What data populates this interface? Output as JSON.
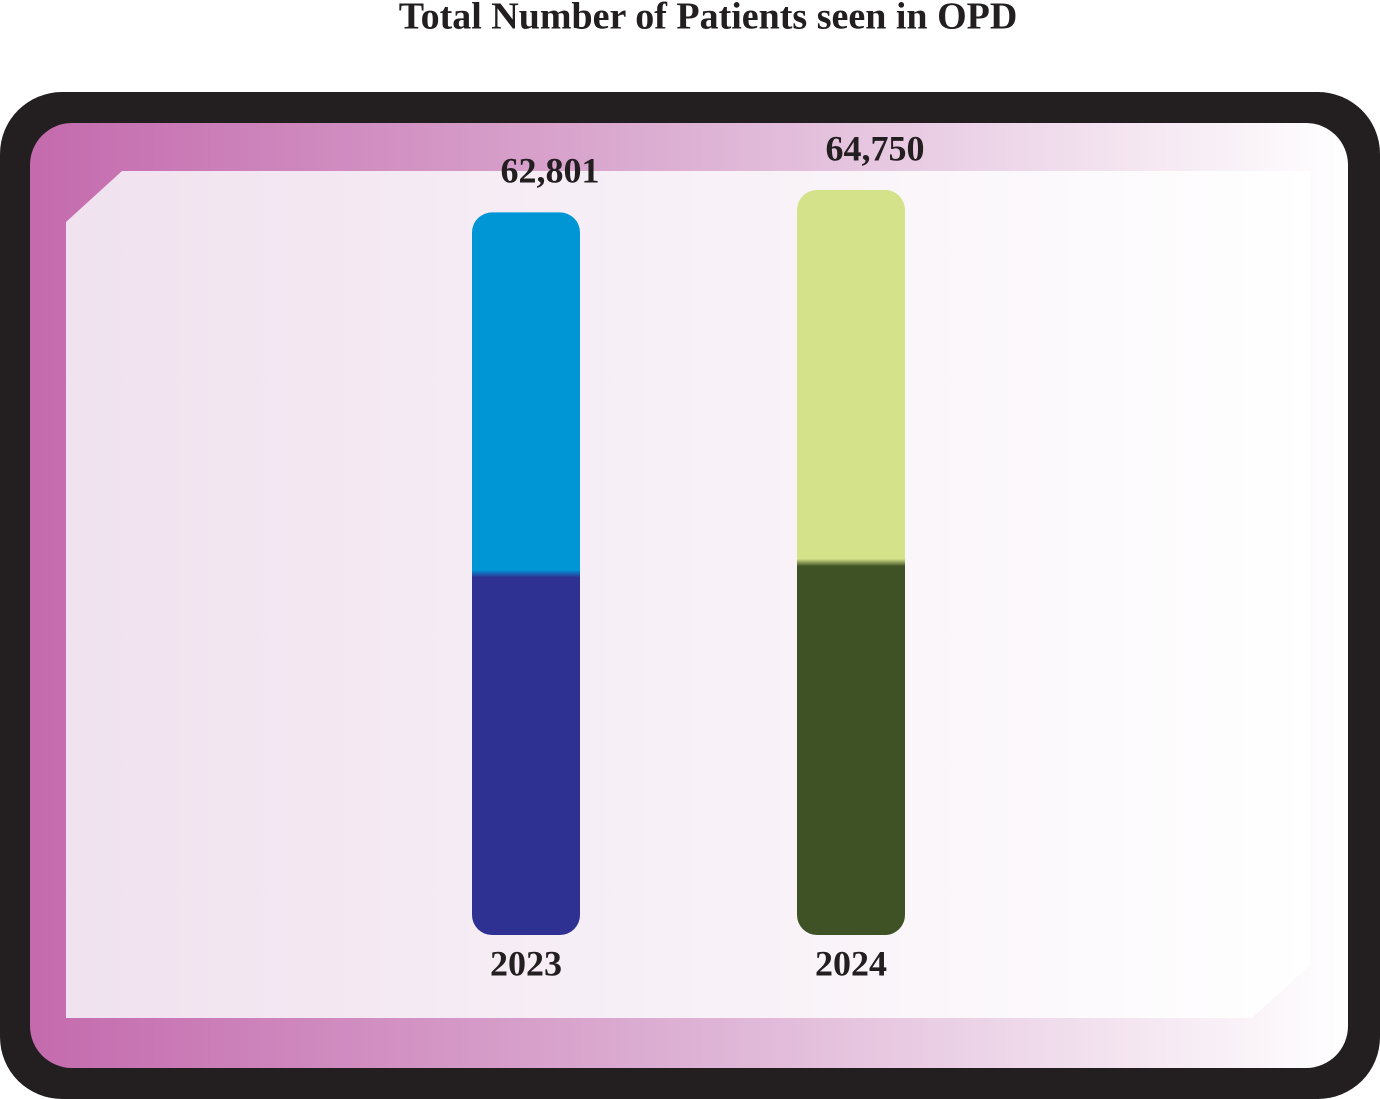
{
  "chart_data": {
    "type": "bar",
    "title": "Total Number of Patients seen in OPD",
    "categories": [
      "2023",
      "2024"
    ],
    "values": [
      62801,
      64750
    ],
    "value_labels": [
      "62,801",
      "64,750"
    ],
    "colors": [
      [
        "#0096d6",
        "#2e3192"
      ],
      [
        "#d4e38a",
        "#3f5225"
      ]
    ]
  }
}
